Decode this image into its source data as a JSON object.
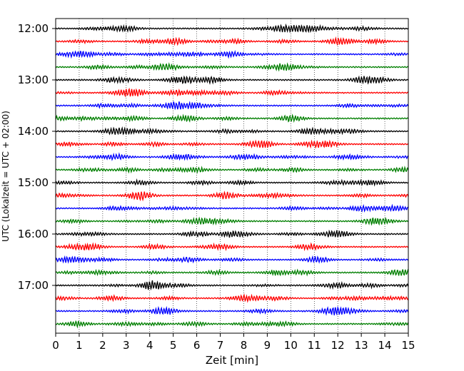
{
  "chart_data": {
    "type": "line",
    "xlabel": "Zeit  [min]",
    "ylabel": "UTC (Lokalzeit = UTC + 02:00)",
    "xlim": [
      0,
      15
    ],
    "x_ticks": [
      "0",
      "1",
      "2",
      "3",
      "4",
      "5",
      "6",
      "7",
      "8",
      "9",
      "10",
      "11",
      "12",
      "13",
      "14",
      "15"
    ],
    "y_ticks": [
      {
        "label": "12:00",
        "trace": 0
      },
      {
        "label": "13:00",
        "trace": 4
      },
      {
        "label": "14:00",
        "trace": 8
      },
      {
        "label": "15:00",
        "trace": 12
      },
      {
        "label": "16:00",
        "trace": 16
      },
      {
        "label": "17:00",
        "trace": 20
      }
    ],
    "traces": [
      {
        "start": "12:00",
        "color": "#000000"
      },
      {
        "start": "12:15",
        "color": "#ff0000"
      },
      {
        "start": "12:30",
        "color": "#0000ff"
      },
      {
        "start": "12:45",
        "color": "#007f00"
      },
      {
        "start": "13:00",
        "color": "#000000"
      },
      {
        "start": "13:15",
        "color": "#ff0000"
      },
      {
        "start": "13:30",
        "color": "#0000ff"
      },
      {
        "start": "13:45",
        "color": "#007f00"
      },
      {
        "start": "14:00",
        "color": "#000000"
      },
      {
        "start": "14:15",
        "color": "#ff0000"
      },
      {
        "start": "14:30",
        "color": "#0000ff"
      },
      {
        "start": "14:45",
        "color": "#007f00"
      },
      {
        "start": "15:00",
        "color": "#000000"
      },
      {
        "start": "15:15",
        "color": "#ff0000"
      },
      {
        "start": "15:30",
        "color": "#0000ff"
      },
      {
        "start": "15:45",
        "color": "#007f00"
      },
      {
        "start": "16:00",
        "color": "#000000"
      },
      {
        "start": "16:15",
        "color": "#ff0000"
      },
      {
        "start": "16:30",
        "color": "#0000ff"
      },
      {
        "start": "16:45",
        "color": "#007f00"
      },
      {
        "start": "17:00",
        "color": "#000000"
      },
      {
        "start": "17:15",
        "color": "#ff0000"
      },
      {
        "start": "17:30",
        "color": "#0000ff"
      },
      {
        "start": "17:45",
        "color": "#007f00"
      }
    ],
    "grid": "vertical dotted",
    "legend": "none"
  }
}
